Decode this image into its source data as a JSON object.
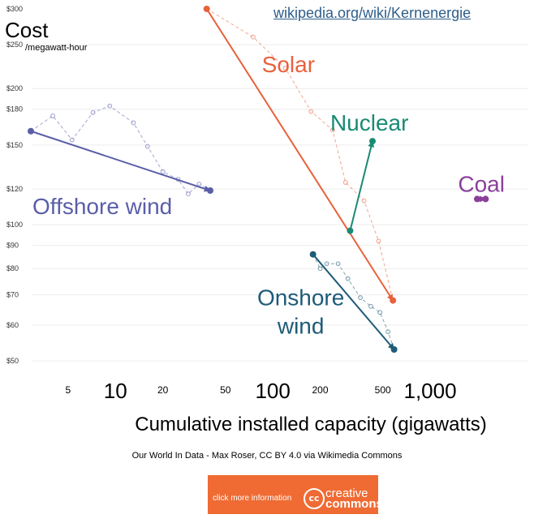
{
  "source_link": "wikipedia.org/wiki/Kernenergie",
  "credit": "Our World In Data - Max Roser, CC BY 4.0  via Wikimedia Commons",
  "cc_badge": {
    "action": "click more information",
    "logo": "cc",
    "word1": "creative",
    "word2": "commons"
  },
  "chart_data": {
    "type": "line",
    "title": "Cost",
    "ylabel": "/megawatt-hour",
    "xlabel": "Cumulative installed capacity (gigawatts)",
    "xscale": "log",
    "yscale": "log",
    "xlim": [
      2.7,
      3200
    ],
    "ylim": [
      48,
      310
    ],
    "x_ticks_major": [
      {
        "value": 10,
        "label": "10"
      },
      {
        "value": 100,
        "label": "100"
      },
      {
        "value": 1000,
        "label": "1,000"
      }
    ],
    "x_ticks_minor": [
      {
        "value": 5,
        "label": "5"
      },
      {
        "value": 20,
        "label": "20"
      },
      {
        "value": 50,
        "label": "50"
      },
      {
        "value": 200,
        "label": "200"
      },
      {
        "value": 500,
        "label": "500"
      }
    ],
    "y_ticks": [
      {
        "value": 300,
        "label": "$300"
      },
      {
        "value": 250,
        "label": "$250"
      },
      {
        "value": 200,
        "label": "$200"
      },
      {
        "value": 180,
        "label": "$180"
      },
      {
        "value": 150,
        "label": "$150"
      },
      {
        "value": 120,
        "label": "$120"
      },
      {
        "value": 100,
        "label": "$100"
      },
      {
        "value": 90,
        "label": "$90"
      },
      {
        "value": 80,
        "label": "$80"
      },
      {
        "value": 70,
        "label": "$70"
      },
      {
        "value": 60,
        "label": "$60"
      },
      {
        "value": 50,
        "label": "$50"
      }
    ],
    "series": [
      {
        "name": "Solar",
        "color": "#e8613c",
        "label_pos": "upper",
        "start": [
          38,
          300
        ],
        "end": [
          580,
          68
        ],
        "history": [
          [
            38,
            300
          ],
          [
            75,
            260
          ],
          [
            120,
            222
          ],
          [
            175,
            178
          ],
          [
            240,
            162
          ],
          [
            290,
            124
          ],
          [
            380,
            113
          ],
          [
            470,
            92
          ],
          [
            580,
            68
          ]
        ]
      },
      {
        "name": "Nuclear",
        "color": "#1a8a73",
        "label_pos": "above",
        "start": [
          310,
          97
        ],
        "end": [
          430,
          153
        ],
        "history": []
      },
      {
        "name": "Coal",
        "color": "#8b3f9a",
        "label_pos": "above",
        "start": [
          1990,
          114
        ],
        "end": [
          2250,
          114
        ],
        "history": []
      },
      {
        "name": "Offshore wind",
        "color": "#5a5ea8",
        "label_pos": "below",
        "start": [
          2.9,
          161
        ],
        "end": [
          40,
          119
        ],
        "history": [
          [
            2.9,
            161
          ],
          [
            4,
            174
          ],
          [
            5.3,
            154
          ],
          [
            7.2,
            177
          ],
          [
            9.2,
            183
          ],
          [
            13,
            168
          ],
          [
            16,
            149
          ],
          [
            20,
            131
          ],
          [
            25,
            126
          ],
          [
            29,
            117
          ],
          [
            34,
            123
          ],
          [
            40,
            119
          ]
        ]
      },
      {
        "name": "Onshore wind",
        "color": "#1e5b78",
        "label_pos": "left",
        "start": [
          180,
          86
        ],
        "end": [
          590,
          53
        ],
        "history": [
          [
            180,
            86
          ],
          [
            200,
            80
          ],
          [
            220,
            82
          ],
          [
            260,
            82
          ],
          [
            300,
            76
          ],
          [
            360,
            69
          ],
          [
            420,
            66
          ],
          [
            480,
            64
          ],
          [
            540,
            58
          ],
          [
            590,
            53
          ]
        ]
      }
    ]
  }
}
